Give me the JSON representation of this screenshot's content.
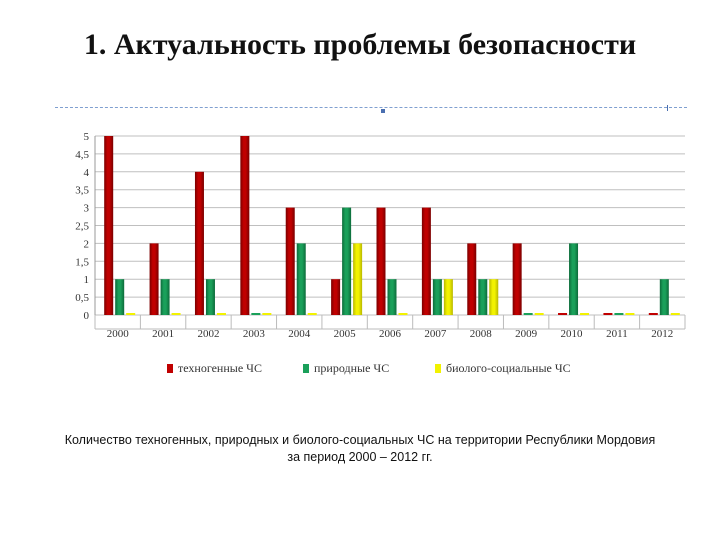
{
  "slide": {
    "title": "1. Актуальность проблемы безопасности",
    "caption_line1": "Количество техногенных, природных и биолого-социальных ЧС на территории Республики Мордовия",
    "caption_line2": "за период 2000 – 2012 гг."
  },
  "colors": {
    "technogenic": "#c00000",
    "natural": "#1aa05a",
    "biosocial": "#f2f200",
    "grid": "#bfbfbf"
  },
  "chart_data": {
    "type": "bar",
    "categories": [
      "2000",
      "2001",
      "2002",
      "2003",
      "2004",
      "2005",
      "2006",
      "2007",
      "2008",
      "2009",
      "2010",
      "2011",
      "2012"
    ],
    "series": [
      {
        "name": "техногенные ЧС",
        "values": [
          5,
          2,
          4,
          5,
          3,
          1,
          3,
          3,
          2,
          2,
          0,
          0,
          0
        ]
      },
      {
        "name": "природные ЧС",
        "values": [
          1,
          1,
          1,
          0,
          2,
          3,
          1,
          1,
          1,
          0,
          2,
          0,
          1
        ]
      },
      {
        "name": "биолого-социальные ЧС",
        "values": [
          0,
          0,
          0,
          0,
          0,
          2,
          0,
          1,
          1,
          0,
          0,
          0,
          0
        ]
      }
    ],
    "yticks": [
      "0",
      "0,5",
      "1",
      "1,5",
      "2",
      "2,5",
      "3",
      "3,5",
      "4",
      "4,5",
      "5"
    ],
    "ylim": [
      0,
      5
    ],
    "grid": true,
    "legend": "bottom"
  }
}
